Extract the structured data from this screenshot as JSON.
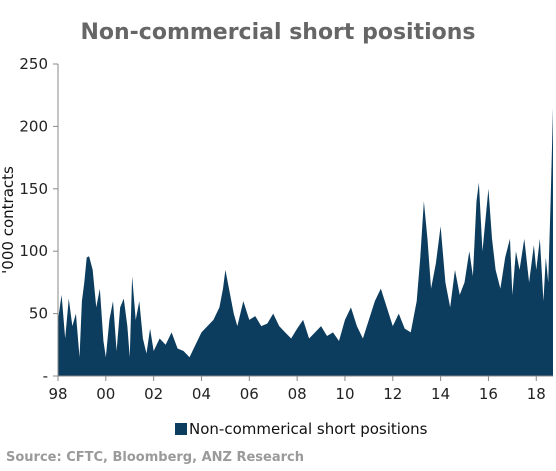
{
  "chart_data": {
    "type": "area",
    "title": "Non-commercial short positions",
    "ylabel": "'000 contracts",
    "xlabel": "",
    "ylim": [
      0,
      250
    ],
    "yticks": [
      0,
      50,
      100,
      150,
      200,
      250
    ],
    "ytick_labels": [
      "-",
      "50",
      "100",
      "150",
      "200",
      "250"
    ],
    "xlim": [
      1998,
      2018.7
    ],
    "xtick_labels": [
      "98",
      "00",
      "02",
      "04",
      "06",
      "08",
      "10",
      "12",
      "14",
      "16",
      "18"
    ],
    "xtick_years": [
      1998,
      2000,
      2002,
      2004,
      2006,
      2008,
      2010,
      2012,
      2014,
      2016,
      2018
    ],
    "legend": "bottom-center",
    "grid": false,
    "series": [
      {
        "name": "Non-commerical short positions",
        "color": "#0d3d5e",
        "x": [
          1998.0,
          1998.15,
          1998.3,
          1998.45,
          1998.6,
          1998.75,
          1998.9,
          1999.0,
          1999.1,
          1999.2,
          1999.3,
          1999.45,
          1999.6,
          1999.75,
          1999.9,
          2000.0,
          2000.15,
          2000.3,
          2000.45,
          2000.6,
          2000.75,
          2000.9,
          2001.0,
          2001.1,
          2001.25,
          2001.4,
          2001.55,
          2001.7,
          2001.85,
          2002.0,
          2002.25,
          2002.5,
          2002.75,
          2003.0,
          2003.25,
          2003.5,
          2003.75,
          2004.0,
          2004.25,
          2004.5,
          2004.75,
          2004.9,
          2005.0,
          2005.1,
          2005.2,
          2005.35,
          2005.5,
          2005.75,
          2006.0,
          2006.25,
          2006.5,
          2006.75,
          2007.0,
          2007.25,
          2007.5,
          2007.75,
          2008.0,
          2008.25,
          2008.5,
          2008.75,
          2009.0,
          2009.25,
          2009.5,
          2009.75,
          2010.0,
          2010.25,
          2010.5,
          2010.75,
          2011.0,
          2011.25,
          2011.5,
          2011.75,
          2012.0,
          2012.25,
          2012.5,
          2012.75,
          2013.0,
          2013.15,
          2013.3,
          2013.45,
          2013.6,
          2013.8,
          2014.0,
          2014.2,
          2014.4,
          2014.6,
          2014.8,
          2015.0,
          2015.2,
          2015.35,
          2015.5,
          2015.6,
          2015.75,
          2015.9,
          2016.0,
          2016.15,
          2016.3,
          2016.5,
          2016.7,
          2016.9,
          2017.0,
          2017.15,
          2017.3,
          2017.5,
          2017.7,
          2017.9,
          2018.0,
          2018.15,
          2018.3,
          2018.4,
          2018.5,
          2018.6,
          2018.7
        ],
        "values": [
          45,
          65,
          30,
          62,
          40,
          50,
          15,
          60,
          75,
          95,
          96,
          85,
          55,
          70,
          28,
          15,
          45,
          60,
          20,
          55,
          62,
          40,
          15,
          80,
          45,
          60,
          30,
          18,
          38,
          20,
          30,
          25,
          35,
          22,
          20,
          15,
          25,
          35,
          40,
          45,
          55,
          70,
          85,
          75,
          65,
          50,
          40,
          60,
          45,
          48,
          40,
          42,
          50,
          40,
          35,
          30,
          38,
          45,
          30,
          35,
          40,
          32,
          35,
          28,
          45,
          55,
          40,
          30,
          45,
          60,
          70,
          55,
          40,
          50,
          38,
          35,
          60,
          95,
          140,
          110,
          70,
          90,
          120,
          75,
          55,
          85,
          65,
          75,
          100,
          80,
          140,
          155,
          100,
          130,
          150,
          110,
          85,
          70,
          95,
          110,
          65,
          100,
          85,
          110,
          75,
          105,
          85,
          110,
          60,
          95,
          75,
          140,
          215
        ]
      }
    ]
  },
  "footer": {
    "source": "Source: CFTC, Bloomberg, ANZ Research"
  }
}
